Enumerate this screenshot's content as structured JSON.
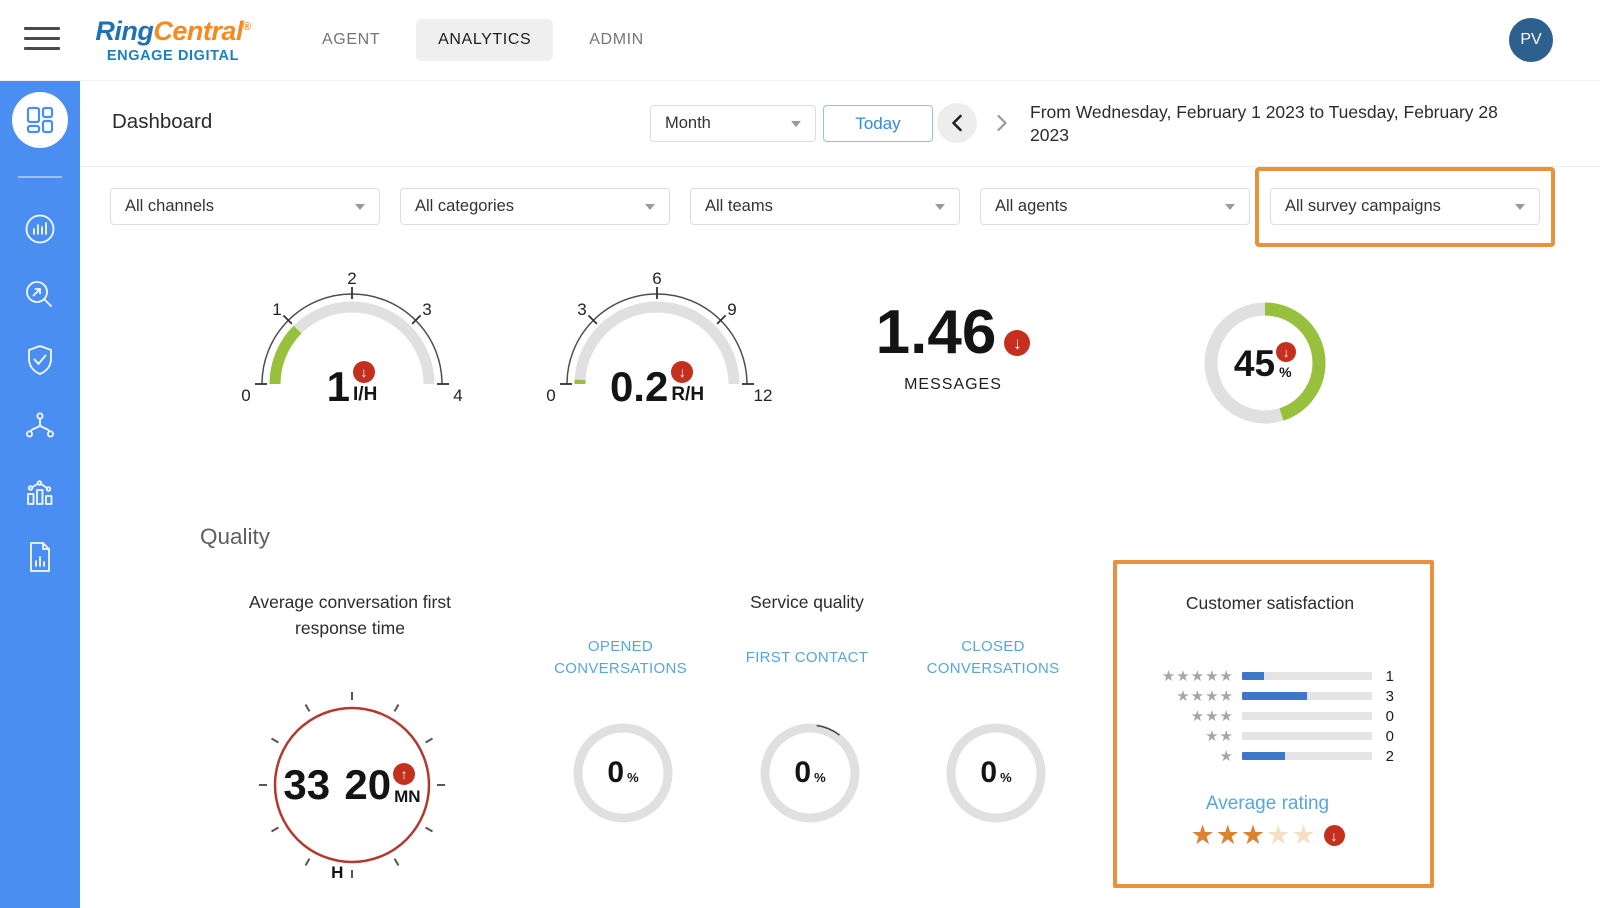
{
  "topbar": {
    "logo": {
      "part1": "Ring",
      "part2": "Central",
      "reg": "®",
      "subtitle": "ENGAGE DIGITAL"
    },
    "tabs": [
      {
        "label": "AGENT"
      },
      {
        "label": "ANALYTICS"
      },
      {
        "label": "ADMIN"
      }
    ],
    "active_tab": "ANALYTICS",
    "avatar_initials": "PV"
  },
  "sidebar": {
    "icons": [
      "dashboard",
      "analytics-circle",
      "search-trend",
      "shield-check",
      "routing",
      "stats-bars",
      "report-doc"
    ]
  },
  "header": {
    "title": "Dashboard",
    "period": "Month",
    "today": "Today",
    "date_range": "From Wednesday, February 1 2023 to Tuesday, February 28 2023"
  },
  "filters": {
    "channels": "All channels",
    "categories": "All categories",
    "teams": "All teams",
    "agents": "All agents",
    "survey_campaigns": "All survey campaigns",
    "highlighted": "All survey campaigns"
  },
  "quality": {
    "section_title": "Quality",
    "response_time_title": "Average conversation first response time",
    "service_quality_title": "Service quality",
    "opened_label": "OPENED CONVERSATIONS",
    "first_contact_label": "FIRST CONTACT",
    "closed_label": "CLOSED CONVERSATIONS",
    "customer_satisfaction_title": "Customer satisfaction",
    "average_rating_label": "Average rating"
  },
  "icons": {
    "down_arrow": "↓",
    "up_arrow": "↑",
    "star": "★"
  },
  "colors": {
    "sidebar_blue": "#4A8EF2",
    "highlight_orange": "#E8923E",
    "gauge_green": "#97C13C",
    "badge_red": "#C5301E",
    "bar_blue": "#3E78C9",
    "label_blue": "#58A6D8",
    "clock_red": "#B03A2E",
    "avatar_blue": "#2D5F8F"
  },
  "chart_data": [
    {
      "id": "gauge-inbound",
      "type": "gauge",
      "value": 1,
      "display": "1",
      "unit": "I/H",
      "min": 0,
      "max": 4,
      "ticks": [
        0,
        1,
        2,
        3,
        4
      ],
      "trend": "down",
      "fill_color": "#97C13C"
    },
    {
      "id": "gauge-response",
      "type": "gauge",
      "value": 0.2,
      "display": "0.2",
      "unit": "R/H",
      "min": 0,
      "max": 12,
      "ticks": [
        0,
        3,
        6,
        9,
        12
      ],
      "trend": "down",
      "fill_color": "#97C13C"
    },
    {
      "id": "metric-messages",
      "type": "metric",
      "display": "1.46",
      "label": "MESSAGES",
      "trend": "down"
    },
    {
      "id": "donut-percent",
      "type": "donut",
      "value": 45,
      "unit": "%",
      "trend": "down",
      "fill_color": "#97C13C"
    },
    {
      "id": "clock-response-time",
      "type": "clock",
      "hours": "33",
      "hours_unit": "H",
      "minutes": "20",
      "minutes_unit": "MN",
      "trend": "up"
    },
    {
      "id": "ring-opened",
      "type": "ring",
      "value": 0,
      "display": "0",
      "unit": "%",
      "label": "OPENED CONVERSATIONS"
    },
    {
      "id": "ring-first-contact",
      "type": "ring",
      "value": 0,
      "display": "0",
      "unit": "%",
      "label": "FIRST CONTACT",
      "partial_arc": true
    },
    {
      "id": "ring-closed",
      "type": "ring",
      "value": 0,
      "display": "0",
      "unit": "%",
      "label": "CLOSED CONVERSATIONS"
    },
    {
      "id": "satisfaction-histogram",
      "type": "bar",
      "title": "Customer satisfaction",
      "categories": [
        "5 stars",
        "4 stars",
        "3 stars",
        "2 stars",
        "1 star"
      ],
      "stars": [
        5,
        4,
        3,
        2,
        1
      ],
      "values": [
        1,
        3,
        0,
        0,
        2
      ],
      "total": 6,
      "average_rating": 3,
      "max_stars": 5,
      "trend": "down"
    }
  ]
}
